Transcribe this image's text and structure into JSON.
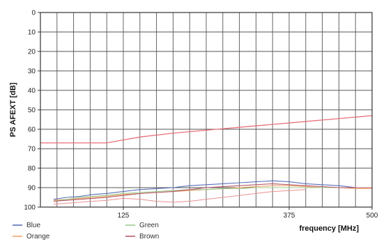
{
  "chart_data": {
    "type": "line",
    "title": "",
    "xlabel": "frequency [MHz]",
    "ylabel": "PS AFEXT [dB]",
    "xlim": [
      0,
      500
    ],
    "ylim": [
      0,
      100
    ],
    "y_inverted": true,
    "grid": true,
    "x_ticks": [
      {
        "value": 125,
        "label": "125"
      },
      {
        "value": 375,
        "label": "375"
      },
      {
        "value": 500,
        "label": "500"
      }
    ],
    "y_ticks": [
      {
        "value": 0,
        "label": "0"
      },
      {
        "value": 10,
        "label": "10"
      },
      {
        "value": 20,
        "label": "20"
      },
      {
        "value": 30,
        "label": "30"
      },
      {
        "value": 40,
        "label": "40"
      },
      {
        "value": 50,
        "label": "50"
      },
      {
        "value": 60,
        "label": "60"
      },
      {
        "value": 70,
        "label": "70"
      },
      {
        "value": 80,
        "label": "80"
      },
      {
        "value": 90,
        "label": "90"
      },
      {
        "value": 100,
        "label": "100"
      }
    ],
    "limit_line": {
      "color": "#e8707a",
      "x": [
        0,
        50,
        100,
        125,
        150,
        200,
        250,
        300,
        350,
        400,
        450,
        500
      ],
      "y": [
        67,
        67,
        67,
        65.5,
        64,
        62,
        60.5,
        59,
        57.5,
        56,
        54.5,
        53
      ]
    },
    "series": [
      {
        "name": "Blue",
        "color": "#5a6fb8",
        "x": [
          20,
          40,
          60,
          80,
          100,
          125,
          150,
          175,
          200,
          225,
          250,
          275,
          300,
          325,
          350,
          375,
          400,
          425,
          450,
          475,
          500
        ],
        "y": [
          96,
          95,
          94.5,
          93.5,
          93,
          92,
          91,
          90.5,
          90,
          89,
          88.5,
          88,
          87.5,
          87,
          86.5,
          87,
          88,
          88.5,
          89,
          90,
          90
        ]
      },
      {
        "name": "Orange",
        "color": "#f2a36a",
        "x": [
          20,
          40,
          60,
          80,
          100,
          125,
          150,
          175,
          200,
          225,
          250,
          275,
          300,
          325,
          350,
          375,
          400,
          425,
          450,
          475,
          500
        ],
        "y": [
          96.5,
          96,
          95.5,
          95,
          94.5,
          93.5,
          93,
          92.5,
          92,
          91.5,
          91,
          90.5,
          90,
          89.5,
          89,
          89,
          89.5,
          90,
          90,
          90.5,
          90.5
        ]
      },
      {
        "name": "Green",
        "color": "#9ccb8e",
        "x": [
          20,
          40,
          60,
          80,
          100,
          125,
          150,
          175,
          200,
          225,
          250,
          275,
          300,
          325,
          350,
          375,
          400,
          425,
          450,
          475,
          500
        ],
        "y": [
          97,
          96,
          95,
          94.5,
          94,
          93,
          92.5,
          92,
          91.5,
          91,
          91,
          90.5,
          90.5,
          90,
          90,
          90,
          90,
          90,
          90,
          90,
          90
        ]
      },
      {
        "name": "Brown",
        "color": "#b5586a",
        "x": [
          20,
          40,
          60,
          80,
          100,
          125,
          150,
          175,
          200,
          225,
          250,
          275,
          300,
          325,
          350,
          375,
          400,
          425,
          450,
          475,
          500
        ],
        "y": [
          97,
          96.5,
          96,
          95.5,
          95,
          94,
          93,
          92.5,
          92,
          91,
          90,
          89.5,
          89,
          88.5,
          88,
          88.5,
          89,
          89.5,
          90,
          90,
          90
        ]
      }
    ],
    "aux_lines": [
      {
        "color": "#e89090",
        "x": [
          20,
          40,
          60,
          80,
          100,
          125,
          150,
          175,
          200,
          225,
          250,
          275,
          300,
          325,
          350,
          375,
          400
        ],
        "y": [
          98.5,
          98,
          97.5,
          97,
          96.5,
          95.5,
          96,
          97,
          97.5,
          97,
          96,
          95,
          94,
          93,
          92,
          91.5,
          91
        ]
      }
    ],
    "legend": {
      "placement": "bottom-left",
      "entries": [
        {
          "name": "Blue",
          "color": "#5a6fb8"
        },
        {
          "name": "Orange",
          "color": "#f2a36a"
        },
        {
          "name": "Green",
          "color": "#9ccb8e"
        },
        {
          "name": "Brown",
          "color": "#b5586a"
        }
      ]
    }
  }
}
